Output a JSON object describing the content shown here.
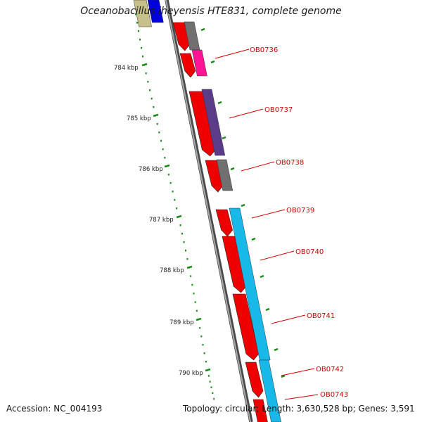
{
  "title": "Oceanobacillus iheyensis HTE831, complete genome",
  "footer": {
    "accession": "Accession: NC_004193",
    "topology": "Topology: circular; Length: 3,630,528 bp; Genes: 3,591"
  },
  "ruler": {
    "tick_labels": [
      "784 kbp",
      "785 kbp",
      "786 kbp",
      "787 kbp",
      "788 kbp",
      "789 kbp",
      "790 kbp"
    ]
  },
  "gene_labels": [
    "OB0736",
    "OB0737",
    "OB0738",
    "OB0739",
    "OB0740",
    "OB0741",
    "OB0742",
    "OB0743"
  ],
  "colors": {
    "forward_gene": "#ee0000",
    "backbone": "#808080",
    "ruler_tick": "#1a8a1a",
    "label": "#d40000",
    "cog_gray": "#707070",
    "cog_magenta": "#ff1493",
    "cog_purple": "#5b3c88",
    "cog_cyan": "#18b8e8",
    "cog_blue": "#0000dd",
    "cog_tan": "#c8c08a"
  }
}
